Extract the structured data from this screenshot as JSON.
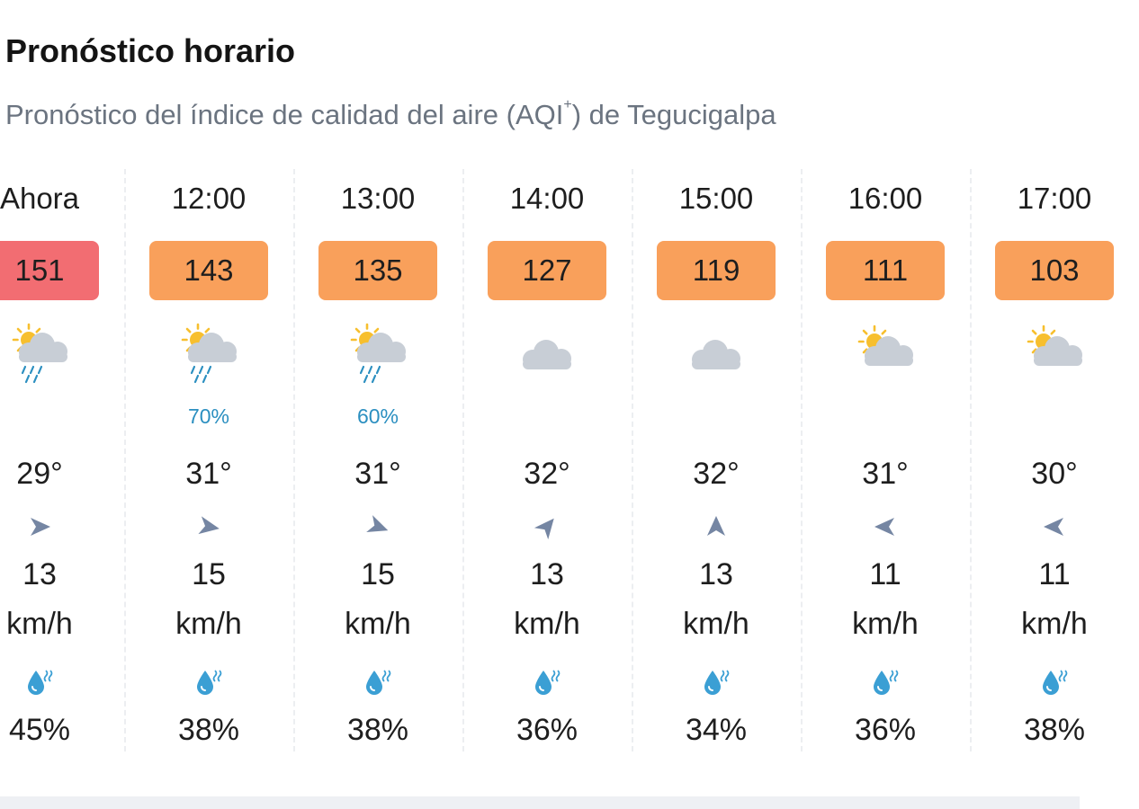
{
  "header": {
    "title": "Pronóstico horario",
    "subtitle_prefix": "Pronóstico del índice de calidad del aire (AQI",
    "subtitle_sup": "+",
    "subtitle_suffix": ") de Tegucigalpa"
  },
  "colors": {
    "aqi_red": "#f26d72",
    "aqi_orange": "#f9a05b",
    "rain_text": "#2b8fc0",
    "wind_arrow": "#7586a3",
    "humidity_drop": "#3b9fd4",
    "cloud": "#c8ced6",
    "sun": "#f7bf2e"
  },
  "hours": [
    {
      "time": "Ahora",
      "aqi": "151",
      "aqi_level": "red",
      "icon": "sun-cloud-rain-icon",
      "rain_chance": "",
      "temp": "29°",
      "wind_speed": "13",
      "wind_unit": "km/h",
      "wind_direction_deg": 90,
      "humidity": "45%"
    },
    {
      "time": "12:00",
      "aqi": "143",
      "aqi_level": "orange",
      "icon": "sun-cloud-rain-icon",
      "rain_chance": "70%",
      "temp": "31°",
      "wind_speed": "15",
      "wind_unit": "km/h",
      "wind_direction_deg": 100,
      "humidity": "38%"
    },
    {
      "time": "13:00",
      "aqi": "135",
      "aqi_level": "orange",
      "icon": "sun-cloud-rain-icon",
      "rain_chance": "60%",
      "temp": "31°",
      "wind_speed": "15",
      "wind_unit": "km/h",
      "wind_direction_deg": 110,
      "humidity": "38%"
    },
    {
      "time": "14:00",
      "aqi": "127",
      "aqi_level": "orange",
      "icon": "cloud-icon",
      "rain_chance": "",
      "temp": "32°",
      "wind_speed": "13",
      "wind_unit": "km/h",
      "wind_direction_deg": 40,
      "humidity": "36%"
    },
    {
      "time": "15:00",
      "aqi": "119",
      "aqi_level": "orange",
      "icon": "cloud-icon",
      "rain_chance": "",
      "temp": "32°",
      "wind_speed": "13",
      "wind_unit": "km/h",
      "wind_direction_deg": 0,
      "humidity": "34%"
    },
    {
      "time": "16:00",
      "aqi": "111",
      "aqi_level": "orange",
      "icon": "sun-cloud-icon",
      "rain_chance": "",
      "temp": "31°",
      "wind_speed": "11",
      "wind_unit": "km/h",
      "wind_direction_deg": 270,
      "humidity": "36%"
    },
    {
      "time": "17:00",
      "aqi": "103",
      "aqi_level": "orange",
      "icon": "sun-cloud-icon",
      "rain_chance": "",
      "temp": "30°",
      "wind_speed": "11",
      "wind_unit": "km/h",
      "wind_direction_deg": 270,
      "humidity": "38%"
    }
  ]
}
